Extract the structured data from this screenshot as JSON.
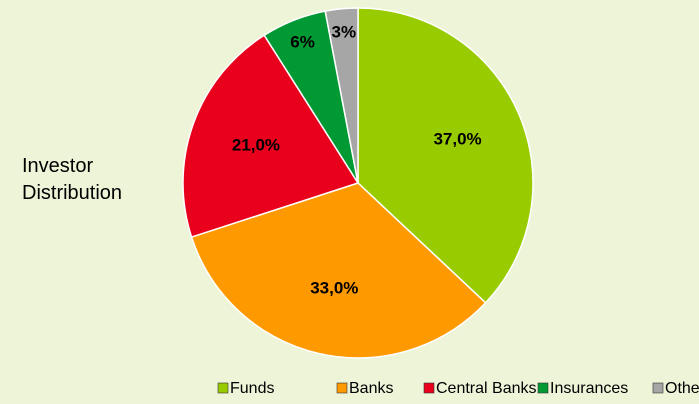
{
  "chart_data": {
    "type": "pie",
    "title": "Investor Distribution",
    "categories": [
      "Funds",
      "Banks",
      "Central Banks",
      "Insurances",
      "Others"
    ],
    "values": [
      37,
      33,
      21,
      6,
      3
    ],
    "value_labels": [
      "37,0%",
      "33,0%",
      "21,0%",
      "6%",
      "3%"
    ],
    "colors": [
      "#99cc00",
      "#ff9900",
      "#e8001c",
      "#009933",
      "#a6a6a6"
    ],
    "legend": "bottom"
  }
}
